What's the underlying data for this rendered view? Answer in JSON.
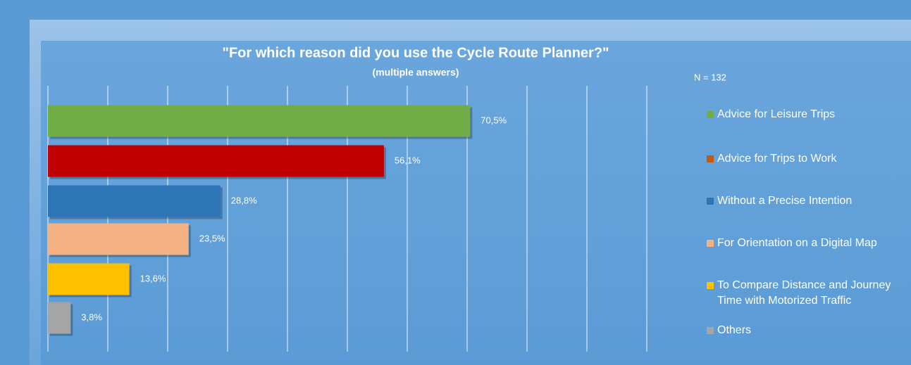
{
  "chart_data": {
    "type": "barh",
    "title": "\"For which reason did you use the Cycle Route Planner?\"",
    "subtitle": "(multiple answers)",
    "annotation": "N = 132",
    "categories": [
      "Advice for Leisure Trips",
      "Advice for Trips to Work",
      "Without a Precise Intention",
      "For Orientation on a Digital Map",
      "To Compare Distance and Journey Time with Motorized Traffic",
      "Others"
    ],
    "values": [
      70.5,
      56.1,
      28.8,
      23.5,
      13.6,
      3.8
    ],
    "value_labels": [
      "70,5%",
      "56,1%",
      "28,8%",
      "23,5%",
      "13,6%",
      "3,8%"
    ],
    "colors": [
      "#70ad47",
      "#c00000",
      "#2e75b6",
      "#f4b183",
      "#ffc000",
      "#a5a5a5"
    ],
    "legend_colors": [
      "#70ad47",
      "#c55a11",
      "#2e75b6",
      "#f4b183",
      "#ffc000",
      "#a5a5a5"
    ],
    "xlim": [
      0,
      100
    ],
    "xticks": [
      0,
      10,
      20,
      30,
      40,
      50,
      60,
      70,
      80,
      90,
      100
    ],
    "grid": true,
    "legend": "right"
  }
}
